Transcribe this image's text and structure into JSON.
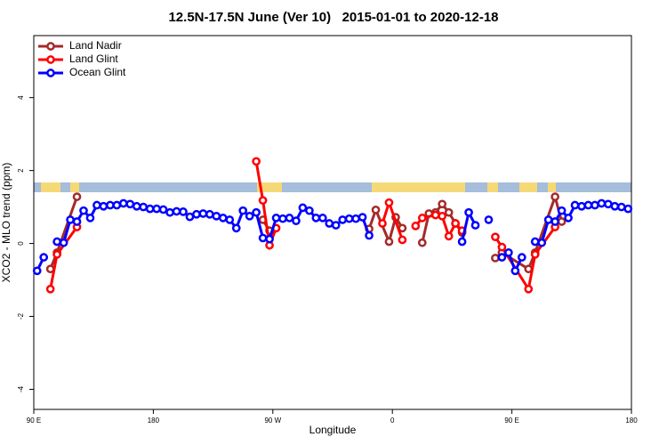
{
  "chart_data": {
    "type": "line",
    "title": "12.5N-17.5N June (Ver 10)   2015-01-01 to 2020-12-18",
    "xlabel": "Longitude",
    "ylabel": "XCO2 - MLO trend (ppm)",
    "xlim": [
      90,
      540
    ],
    "ylim": [
      -4.55,
      5.7
    ],
    "xticks": [
      {
        "value": 90,
        "label": "90 E"
      },
      180,
      {
        "value": 270,
        "label": "90 W"
      },
      {
        "value": 360,
        "label": "0"
      },
      {
        "value": 450,
        "label": "90 E"
      },
      {
        "value": 540,
        "label": "180"
      }
    ],
    "yticks": [
      -4,
      -2,
      0,
      2,
      4
    ],
    "legend": "top-left",
    "series": [
      {
        "name": "Land Nadir",
        "color": "#a52a2a",
        "x": [
          102.5,
          107.5,
          122.5,
          127.5,
          262.5,
          267.5,
          272.5,
          342.5,
          347.5,
          357.5,
          362.5,
          367.5,
          372.5,
          382.5,
          387.5,
          392.5,
          397.5,
          402.5,
          407.5,
          412.5,
          417.5,
          437.5,
          442.5,
          462.5,
          467.5,
          482.5,
          487.5
        ],
        "values": [
          -0.7,
          -0.25,
          1.28,
          null,
          0.65,
          0.35,
          null,
          0.4,
          0.92,
          0.05,
          0.72,
          0.42,
          null,
          0.02,
          0.82,
          0.85,
          1.08,
          0.85,
          0.55,
          0.3,
          null,
          -0.4,
          -0.25,
          -0.7,
          -0.25,
          1.28,
          0.6
        ]
      },
      {
        "name": "Land Glint",
        "color": "#ff0000",
        "x": [
          102.5,
          107.5,
          122.5,
          127.5,
          257.5,
          262.5,
          267.5,
          272.5,
          277.5,
          352.5,
          357.5,
          367.5,
          372.5,
          377.5,
          382.5,
          392.5,
          397.5,
          402.5,
          407.5,
          412.5,
          417.5,
          437.5,
          442.5,
          462.5,
          467.5,
          482.5
        ],
        "values": [
          -1.25,
          -0.3,
          0.45,
          null,
          2.25,
          1.18,
          -0.05,
          0.42,
          null,
          0.55,
          1.12,
          0.1,
          null,
          0.48,
          0.7,
          0.78,
          0.75,
          0.2,
          0.55,
          0.35,
          null,
          0.18,
          -0.1,
          -1.25,
          -0.3,
          0.45
        ]
      },
      {
        "name": "Ocean Glint",
        "color": "#0000ff",
        "x": [
          92.5,
          97.5,
          102.5,
          107.5,
          112.5,
          117.5,
          122.5,
          127.5,
          132.5,
          137.5,
          142.5,
          147.5,
          152.5,
          157.5,
          162.5,
          167.5,
          172.5,
          177.5,
          182.5,
          187.5,
          192.5,
          197.5,
          202.5,
          207.5,
          212.5,
          217.5,
          222.5,
          227.5,
          232.5,
          237.5,
          242.5,
          247.5,
          252.5,
          257.5,
          262.5,
          267.5,
          272.5,
          277.5,
          282.5,
          287.5,
          292.5,
          297.5,
          302.5,
          307.5,
          312.5,
          317.5,
          322.5,
          327.5,
          332.5,
          337.5,
          342.5,
          347.5,
          412.5,
          417.5,
          422.5,
          427.5,
          432.5,
          437.5,
          442.5,
          447.5,
          452.5,
          457.5,
          462.5,
          467.5,
          472.5,
          477.5,
          482.5,
          487.5,
          492.5,
          497.5,
          502.5,
          507.5,
          512.5,
          517.5,
          522.5,
          527.5,
          532.5,
          537.5
        ],
        "values": [
          -0.75,
          -0.38,
          null,
          0.05,
          0.02,
          0.65,
          0.6,
          0.9,
          0.7,
          1.05,
          1.02,
          1.05,
          1.05,
          1.1,
          1.08,
          1.02,
          1.0,
          0.95,
          0.95,
          0.93,
          0.85,
          0.88,
          0.87,
          0.73,
          0.8,
          0.82,
          0.8,
          0.75,
          0.7,
          0.65,
          0.42,
          0.9,
          0.75,
          0.85,
          0.15,
          0.12,
          0.7,
          0.68,
          0.7,
          0.62,
          0.98,
          0.9,
          0.7,
          0.7,
          0.55,
          0.5,
          0.65,
          0.68,
          0.68,
          0.72,
          0.22,
          null,
          0.05,
          0.85,
          0.5,
          null,
          0.65,
          null,
          -0.38,
          -0.25,
          -0.75,
          -0.38,
          null,
          0.05,
          0.02,
          0.65,
          0.6,
          0.9,
          0.7,
          1.05,
          1.02,
          1.05,
          1.05,
          1.1,
          1.08,
          1.02,
          1.0,
          0.95
        ]
      }
    ]
  }
}
